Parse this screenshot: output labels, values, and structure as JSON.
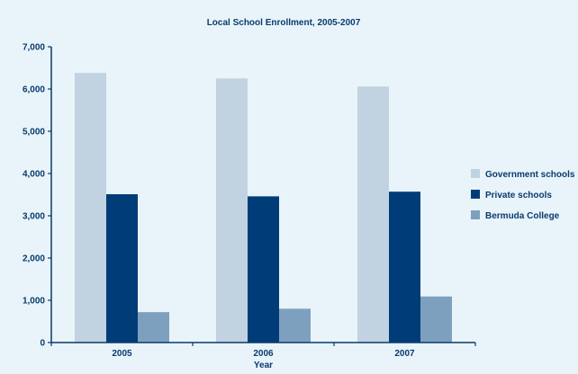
{
  "chart_data": {
    "type": "bar",
    "title": "Local School Enrollment, 2005-2007",
    "xlabel": "Year",
    "ylabel": "",
    "categories": [
      "2005",
      "2006",
      "2007"
    ],
    "ylim": [
      0,
      7000
    ],
    "yticks": [
      0,
      1000,
      2000,
      3000,
      4000,
      5000,
      6000,
      7000
    ],
    "ytick_labels": [
      "0",
      "1,000",
      "2,000",
      "3,000",
      "4,000",
      "5,000",
      "6,000",
      "7,000"
    ],
    "grid": false,
    "legend_position": "right",
    "series": [
      {
        "name": "Government schools",
        "color": "#c1d3e0",
        "values": [
          6380,
          6250,
          6060
        ]
      },
      {
        "name": "Private schools",
        "color": "#003d78",
        "values": [
          3510,
          3460,
          3570
        ]
      },
      {
        "name": "Bermuda College",
        "color": "#7ea0bf",
        "values": [
          720,
          800,
          1090
        ]
      }
    ]
  }
}
